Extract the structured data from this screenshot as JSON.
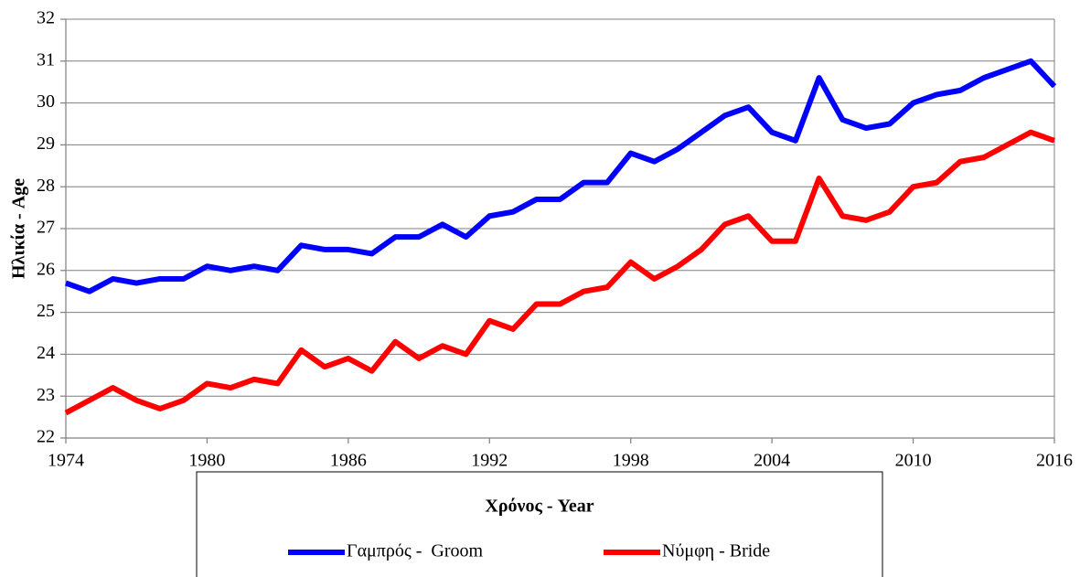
{
  "chart_data": {
    "type": "line",
    "xlabel": "Χρόνος - Year",
    "ylabel": "Ηλικία - Age",
    "x": [
      1974,
      1975,
      1976,
      1977,
      1978,
      1979,
      1980,
      1981,
      1982,
      1983,
      1984,
      1985,
      1986,
      1987,
      1988,
      1989,
      1990,
      1991,
      1992,
      1993,
      1994,
      1995,
      1996,
      1997,
      1998,
      1999,
      2000,
      2001,
      2002,
      2003,
      2004,
      2005,
      2006,
      2007,
      2008,
      2009,
      2010,
      2011,
      2012,
      2013,
      2014,
      2015,
      2016
    ],
    "series": [
      {
        "name": "Γαμπρός -  Groom",
        "color": "#0000ff",
        "values": [
          25.7,
          25.5,
          25.8,
          25.7,
          25.8,
          25.8,
          26.1,
          26.0,
          26.1,
          26.0,
          26.6,
          26.5,
          26.5,
          26.4,
          26.8,
          26.8,
          27.1,
          26.8,
          27.3,
          27.4,
          27.7,
          27.7,
          28.1,
          28.1,
          28.8,
          28.6,
          28.9,
          29.3,
          29.7,
          29.9,
          29.3,
          29.1,
          30.6,
          29.6,
          29.4,
          29.5,
          30.0,
          30.2,
          30.3,
          30.6,
          30.8,
          31.0,
          30.4
        ]
      },
      {
        "name": "Νύμφη - Bride",
        "color": "#ff0000",
        "values": [
          22.6,
          22.9,
          23.2,
          22.9,
          22.7,
          22.9,
          23.3,
          23.2,
          23.4,
          23.3,
          24.1,
          23.7,
          23.9,
          23.6,
          24.3,
          23.9,
          24.2,
          24.0,
          24.8,
          24.6,
          25.2,
          25.2,
          25.5,
          25.6,
          26.2,
          25.8,
          26.1,
          26.5,
          27.1,
          27.3,
          26.7,
          26.7,
          28.2,
          27.3,
          27.2,
          27.4,
          28.0,
          28.1,
          28.6,
          28.7,
          29.0,
          29.3,
          29.1
        ]
      }
    ],
    "xlim": [
      1974,
      2016
    ],
    "xticks": [
      1974,
      1980,
      1986,
      1992,
      1998,
      2004,
      2010,
      2016
    ],
    "ylim": [
      22,
      32
    ],
    "yticks": [
      22,
      23,
      24,
      25,
      26,
      27,
      28,
      29,
      30,
      31,
      32
    ],
    "grid": true,
    "legend": "bottom"
  }
}
